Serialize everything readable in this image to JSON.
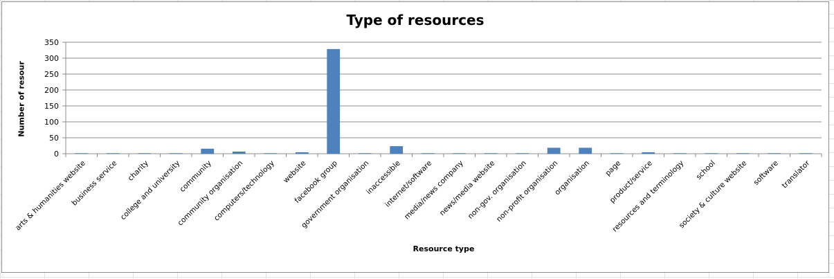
{
  "chart_data": {
    "type": "bar",
    "title": "Type of resources",
    "xlabel": "Resource type",
    "ylabel": "Number of resour",
    "ylim": [
      0,
      350
    ],
    "yticks": [
      0,
      50,
      100,
      150,
      200,
      250,
      300,
      350
    ],
    "grid": true,
    "legend": "none",
    "color": "#4f81bd",
    "categories": [
      "arts & humanities website",
      "business service",
      "charity",
      "college and university",
      "community",
      "community organisation",
      "computers/technology",
      "website",
      "facebook group",
      "government organisation",
      "inaccessible",
      "internet/software",
      "media/news company",
      "news/media website",
      "non-gov. organisation",
      "non-profit organisation",
      "organisation",
      "page",
      "product/service",
      "resources and terminology",
      "school",
      "society & culture website",
      "software",
      "translator"
    ],
    "values": [
      1,
      1,
      1,
      1,
      15,
      6,
      1,
      4,
      328,
      1,
      23,
      1,
      1,
      1,
      1,
      18,
      18,
      1,
      4,
      1,
      1,
      1,
      1,
      1
    ]
  }
}
